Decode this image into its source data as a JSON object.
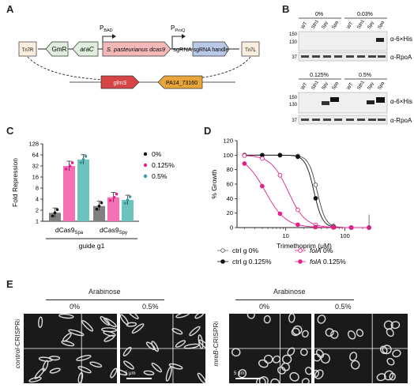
{
  "panelA": {
    "label": "A",
    "promoter_bad": "P",
    "promoter_bad_sub": "BAD",
    "promoter_proq": "P",
    "promoter_proq_sub": "ProQ",
    "tn7r": "Tn7R",
    "tn7l": "Tn7L",
    "gmr": "GmR",
    "arac": "araC",
    "dcas9": "S. pasteurianus dcas9",
    "sgrna": "sgRNA",
    "sgrna_handle": "sgRNA handle",
    "glms": "glmS",
    "pa14": "PA14_73160"
  },
  "panelB": {
    "label": "B",
    "conc_top_left": "0%",
    "conc_top_right": "0.03%",
    "conc_bottom_left": "0.125%",
    "conc_bottom_right": "0.5%",
    "lanes": [
      "WT",
      "Sth1",
      "Spy",
      "Spa"
    ],
    "mw_150": "150",
    "mw_130": "130",
    "mw_37": "37",
    "his_label": "α-6×His",
    "rpoa_label": "α-RpoA"
  },
  "panelC": {
    "label": "C",
    "ylabel": "Fold Repression",
    "xlabel": "guide g1",
    "ticks": [
      "1",
      "2",
      "4",
      "8",
      "16",
      "32",
      "64",
      "128"
    ],
    "groups": [
      "dCas9",
      "dCas9"
    ],
    "group_subs": [
      "Spa",
      "Spy"
    ],
    "legend": [
      "0%",
      "0.125%",
      "0.5%"
    ],
    "colors": [
      "#808080",
      "#f56fb4",
      "#6cc3bd"
    ],
    "legend_colors": [
      "#111111",
      "#e6208a",
      "#3a9a96"
    ]
  },
  "chart_data": {
    "type": "bar",
    "categories": [
      "dCas9Spa",
      "dCas9Spy"
    ],
    "series": [
      {
        "name": "0%",
        "values": [
          1.7,
          2.6
        ]
      },
      {
        "name": "0.125%",
        "values": [
          32,
          4.5
        ]
      },
      {
        "name": "0.5%",
        "values": [
          48,
          3.8
        ]
      }
    ],
    "ylabel": "Fold Repression",
    "xlabel": "guide g1",
    "ylim": [
      1,
      128
    ],
    "yscale": "log2"
  },
  "panelD": {
    "label": "D",
    "ylabel": "% Growth",
    "xlabel": "Trimethoprim (μM)",
    "yticks": [
      "0",
      "20",
      "40",
      "60",
      "80",
      "100",
      "120"
    ],
    "xticks": [
      "10",
      "100"
    ],
    "legend": [
      {
        "text": "ctrl g 0%",
        "italic": false
      },
      {
        "text": "folA",
        "italic": true,
        "suffix": " 0%"
      },
      {
        "text": "ctrl g 0.125%",
        "italic": false
      },
      {
        "text": "folA",
        "italic": true,
        "suffix": " 0.125%"
      }
    ]
  },
  "panelE": {
    "label": "E",
    "arabinose_left": "Arabinose",
    "arabinose_right": "Arabinose",
    "conc_0_left": "0%",
    "conc_05_left": "0.5%",
    "conc_0_right": "0%",
    "conc_05_right": "0.5%",
    "control_label_ital": "control",
    "control_label_rest": "-CRISPRi",
    "mreb_label_ital": "mreB",
    "mreb_label_rest": "-CRISPRi",
    "scale_left": "5 μm",
    "scale_right": "5 μm"
  }
}
